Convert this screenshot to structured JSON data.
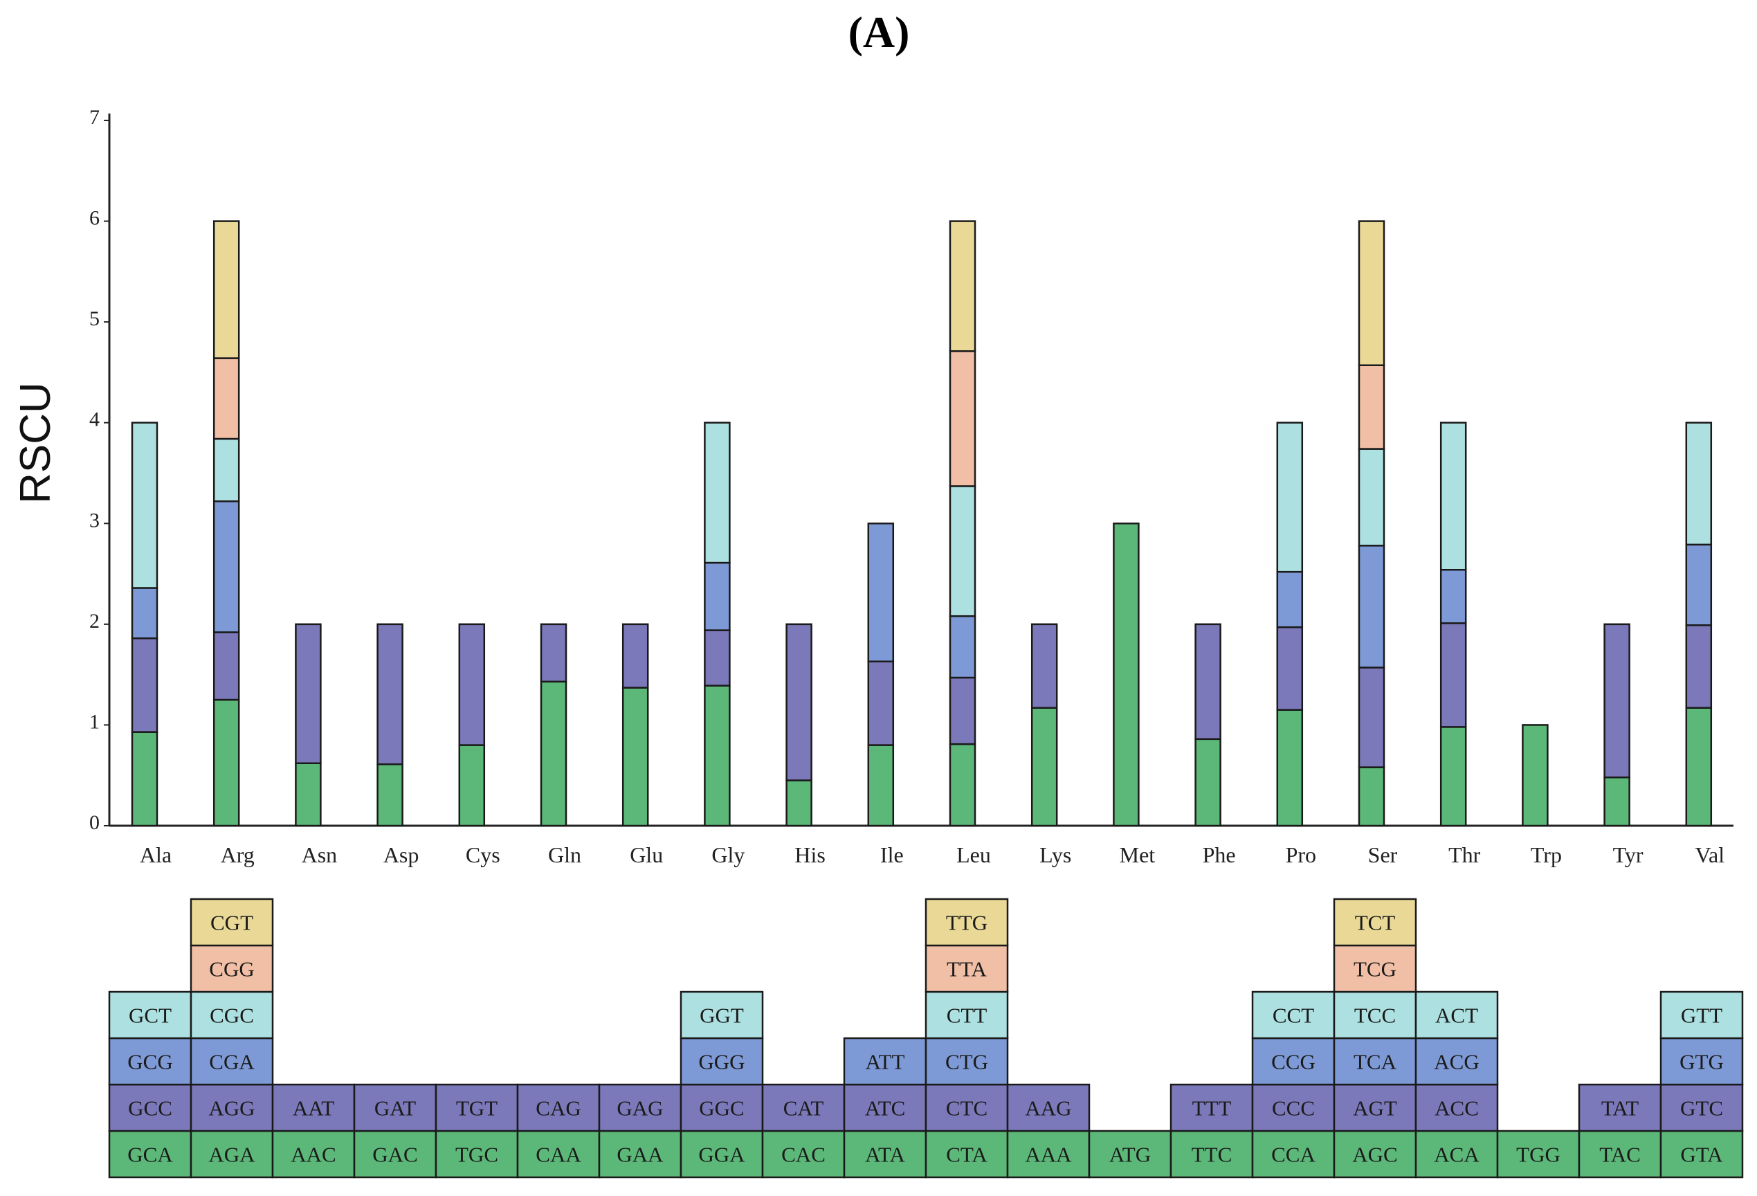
{
  "panel_label": "(A)",
  "colors": [
    "#5cb878",
    "#7b79b9",
    "#7e9ad6",
    "#ade0e0",
    "#f0bfa6",
    "#ead996"
  ],
  "chart_data": {
    "type": "bar",
    "stacked": true,
    "ylabel": "RSCU",
    "ylim": [
      0,
      7
    ],
    "yticks": [
      0,
      1,
      2,
      3,
      4,
      5,
      6,
      7
    ],
    "categories": [
      "Ala",
      "Arg",
      "Asn",
      "Asp",
      "Cys",
      "Gln",
      "Glu",
      "Gly",
      "His",
      "Ile",
      "Leu",
      "Lys",
      "Met",
      "Phe",
      "Pro",
      "Ser",
      "Thr",
      "Trp",
      "Tyr",
      "Val"
    ],
    "stacks": [
      [
        0.93,
        0.93,
        0.5,
        1.64
      ],
      [
        1.25,
        0.67,
        1.3,
        0.62,
        0.8,
        1.36
      ],
      [
        0.62,
        1.38
      ],
      [
        0.61,
        1.39
      ],
      [
        0.8,
        1.2
      ],
      [
        1.43,
        0.57
      ],
      [
        1.37,
        0.63
      ],
      [
        1.39,
        0.55,
        0.67,
        1.39
      ],
      [
        0.45,
        1.55
      ],
      [
        0.8,
        0.83,
        1.37
      ],
      [
        0.81,
        0.66,
        0.61,
        1.29,
        1.34,
        1.29
      ],
      [
        1.17,
        0.83
      ],
      [
        3.0
      ],
      [
        0.86,
        1.14
      ],
      [
        1.15,
        0.82,
        0.55,
        1.48
      ],
      [
        0.58,
        0.99,
        1.21,
        0.96,
        0.83,
        1.43
      ],
      [
        0.98,
        1.03,
        0.53,
        1.46
      ],
      [
        1.0
      ],
      [
        0.48,
        1.52
      ],
      [
        1.17,
        0.82,
        0.8,
        1.21
      ]
    ],
    "codons": [
      [
        "GCA",
        "GCC",
        "GCG",
        "GCT"
      ],
      [
        "AGA",
        "AGG",
        "CGA",
        "CGC",
        "CGG",
        "CGT"
      ],
      [
        "AAC",
        "AAT"
      ],
      [
        "GAC",
        "GAT"
      ],
      [
        "TGC",
        "TGT"
      ],
      [
        "CAA",
        "CAG"
      ],
      [
        "GAA",
        "GAG"
      ],
      [
        "GGA",
        "GGC",
        "GGG",
        "GGT"
      ],
      [
        "CAC",
        "CAT"
      ],
      [
        "ATA",
        "ATC",
        "ATT"
      ],
      [
        "CTA",
        "CTC",
        "CTG",
        "CTT",
        "TTA",
        "TTG"
      ],
      [
        "AAA",
        "AAG"
      ],
      [
        "ATG"
      ],
      [
        "TTC",
        "TTT"
      ],
      [
        "CCA",
        "CCC",
        "CCG",
        "CCT"
      ],
      [
        "AGC",
        "AGT",
        "TCA",
        "TCC",
        "TCG",
        "TCT"
      ],
      [
        "ACA",
        "ACC",
        "ACG",
        "ACT"
      ],
      [
        "TGG"
      ],
      [
        "TAC",
        "TAT"
      ],
      [
        "GTA",
        "GTC",
        "GTG",
        "GTT"
      ]
    ]
  }
}
